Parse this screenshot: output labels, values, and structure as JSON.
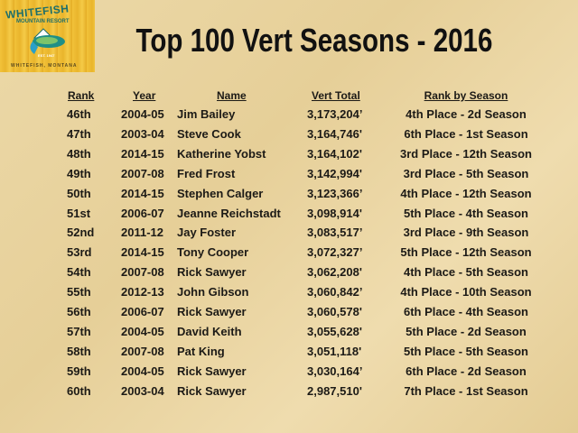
{
  "logo": {
    "line1": "WHITEFISH",
    "line2": "MOUNTAIN RESORT",
    "est": "EST. 1947",
    "location": "WHITEFISH, MONTANA"
  },
  "title": "Top 100 Vert Seasons - 2016",
  "headers": {
    "rank": "Rank",
    "year": "Year",
    "name": "Name",
    "vert": "Vert Total",
    "rbs": "Rank by Season"
  },
  "rows": [
    {
      "rank": "46th",
      "year": "2004-05",
      "name": "Jim Bailey",
      "vert": "3,173,204’",
      "rbs": "4th Place - 2d Season"
    },
    {
      "rank": "47th",
      "year": "2003-04",
      "name": "Steve Cook",
      "vert": "3,164,746'",
      "rbs": "6th Place - 1st Season"
    },
    {
      "rank": "48th",
      "year": "2014-15",
      "name": "Katherine Yobst",
      "vert": "3,164,102'",
      "rbs": "3rd Place - 12th Season"
    },
    {
      "rank": "49th",
      "year": "2007-08",
      "name": "Fred Frost",
      "vert": "3,142,994'",
      "rbs": "3rd Place - 5th Season"
    },
    {
      "rank": "50th",
      "year": "2014-15",
      "name": "Stephen Calger",
      "vert": "3,123,366’",
      "rbs": "4th Place - 12th Season"
    },
    {
      "rank": "51st",
      "year": "2006-07",
      "name": "Jeanne Reichstadt",
      "vert": "3,098,914'",
      "rbs": "5th Place - 4th Season"
    },
    {
      "rank": "52nd",
      "year": "2011-12",
      "name": "Jay Foster",
      "vert": "3,083,517’",
      "rbs": "3rd Place  - 9th Season"
    },
    {
      "rank": "53rd",
      "year": "2014-15",
      "name": "Tony Cooper",
      "vert": "3,072,327’",
      "rbs": "5th Place - 12th Season"
    },
    {
      "rank": "54th",
      "year": "2007-08",
      "name": "Rick Sawyer",
      "vert": "3,062,208'",
      "rbs": "4th Place - 5th Season"
    },
    {
      "rank": "55th",
      "year": "2012-13",
      "name": "John Gibson",
      "vert": "3,060,842’",
      "rbs": "4th Place - 10th Season"
    },
    {
      "rank": "56th",
      "year": "2006-07",
      "name": "Rick Sawyer",
      "vert": "3,060,578'",
      "rbs": "6th Place - 4th Season"
    },
    {
      "rank": "57th",
      "year": "2004-05",
      "name": "David Keith",
      "vert": "3,055,628'",
      "rbs": "5th Place - 2d Season"
    },
    {
      "rank": "58th",
      "year": "2007-08",
      "name": "Pat King",
      "vert": "3,051,118'",
      "rbs": "5th Place - 5th Season"
    },
    {
      "rank": "59th",
      "year": "2004-05",
      "name": "Rick Sawyer",
      "vert": "3,030,164’",
      "rbs": "6th Place - 2d Season"
    },
    {
      "rank": "60th",
      "year": "2003-04",
      "name": "Rick Sawyer",
      "vert": "2,987,510'",
      "rbs": "7th Place - 1st Season"
    }
  ]
}
